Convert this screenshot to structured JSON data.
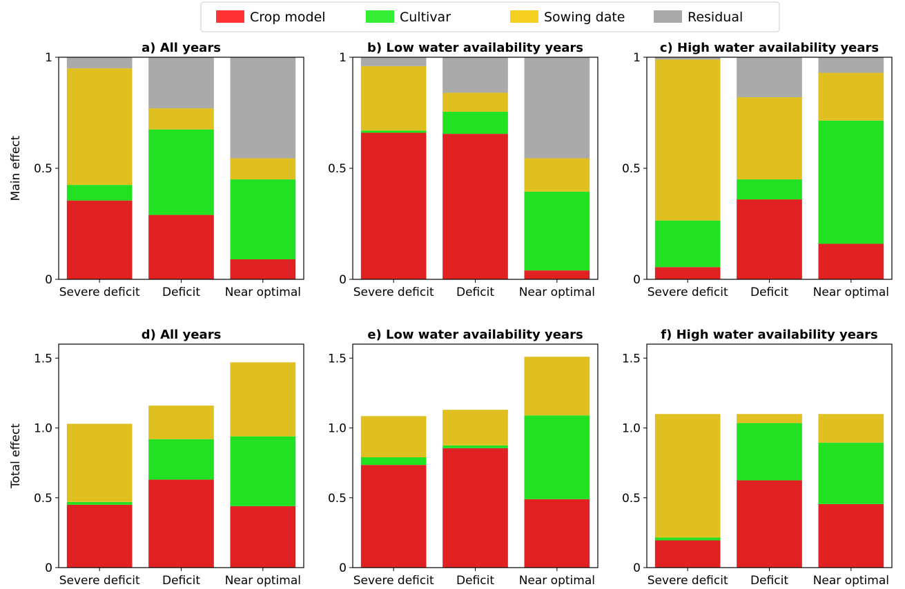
{
  "legend": {
    "placement": "top-center",
    "items": [
      {
        "label": "Crop model",
        "color": "#ff3333"
      },
      {
        "label": "Cultivar",
        "color": "#33ee33"
      },
      {
        "label": "Sowing date",
        "color": "#f5d020"
      },
      {
        "label": "Residual",
        "color": "#aaaaaa"
      }
    ]
  },
  "colors": {
    "crop_model": "#e02222",
    "cultivar": "#22e022",
    "sowing_date": "#dfc020",
    "residual": "#aaaaaa"
  },
  "chart_data": [
    {
      "type": "bar",
      "stacked": true,
      "title": "a) All years",
      "ylabel": "Main effect",
      "categories": [
        "Severe deficit",
        "Deficit",
        "Near optimal"
      ],
      "ylim": [
        0,
        1
      ],
      "yticks": [
        0,
        0.5,
        1
      ],
      "ytick_labels": [
        "0",
        "0.5",
        "1"
      ],
      "series": [
        {
          "name": "Crop model",
          "values": [
            0.355,
            0.29,
            0.09
          ]
        },
        {
          "name": "Cultivar",
          "values": [
            0.07,
            0.385,
            0.36
          ]
        },
        {
          "name": "Sowing date",
          "values": [
            0.525,
            0.095,
            0.095
          ]
        },
        {
          "name": "Residual",
          "values": [
            0.05,
            0.23,
            0.455
          ]
        }
      ]
    },
    {
      "type": "bar",
      "stacked": true,
      "title": "b) Low water availability years",
      "ylabel": "",
      "categories": [
        "Severe deficit",
        "Deficit",
        "Near optimal"
      ],
      "ylim": [
        0,
        1
      ],
      "yticks": [
        0,
        0.5,
        1
      ],
      "ytick_labels": [
        "0",
        "0.5",
        "1"
      ],
      "series": [
        {
          "name": "Crop model",
          "values": [
            0.66,
            0.655,
            0.04
          ]
        },
        {
          "name": "Cultivar",
          "values": [
            0.01,
            0.1,
            0.355
          ]
        },
        {
          "name": "Sowing date",
          "values": [
            0.29,
            0.085,
            0.15
          ]
        },
        {
          "name": "Residual",
          "values": [
            0.04,
            0.16,
            0.455
          ]
        }
      ]
    },
    {
      "type": "bar",
      "stacked": true,
      "title": "c) High water availability years",
      "ylabel": "",
      "categories": [
        "Severe deficit",
        "Deficit",
        "Near optimal"
      ],
      "ylim": [
        0,
        1
      ],
      "yticks": [
        0,
        0.5,
        1
      ],
      "ytick_labels": [
        "0",
        "0.5",
        "1"
      ],
      "series": [
        {
          "name": "Crop model",
          "values": [
            0.055,
            0.36,
            0.16
          ]
        },
        {
          "name": "Cultivar",
          "values": [
            0.21,
            0.09,
            0.555
          ]
        },
        {
          "name": "Sowing date",
          "values": [
            0.725,
            0.37,
            0.215
          ]
        },
        {
          "name": "Residual",
          "values": [
            0.01,
            0.18,
            0.07
          ]
        }
      ]
    },
    {
      "type": "bar",
      "stacked": true,
      "title": "d) All years",
      "ylabel": "Total effect",
      "categories": [
        "Severe deficit",
        "Deficit",
        "Near optimal"
      ],
      "ylim": [
        0,
        1.6
      ],
      "yticks": [
        0,
        0.5,
        1.0,
        1.5
      ],
      "ytick_labels": [
        "0",
        "0.5",
        "1.0",
        "1.5"
      ],
      "series": [
        {
          "name": "Crop model",
          "values": [
            0.45,
            0.63,
            0.44
          ]
        },
        {
          "name": "Cultivar",
          "values": [
            0.02,
            0.29,
            0.5
          ]
        },
        {
          "name": "Sowing date",
          "values": [
            0.56,
            0.24,
            0.53
          ]
        }
      ]
    },
    {
      "type": "bar",
      "stacked": true,
      "title": "e) Low water availability years",
      "ylabel": "",
      "categories": [
        "Severe deficit",
        "Deficit",
        "Near optimal"
      ],
      "ylim": [
        0,
        1.6
      ],
      "yticks": [
        0,
        0.5,
        1.0,
        1.5
      ],
      "ytick_labels": [
        "0",
        "0.5",
        "1.0",
        "1.5"
      ],
      "series": [
        {
          "name": "Crop model",
          "values": [
            0.735,
            0.855,
            0.49
          ]
        },
        {
          "name": "Cultivar",
          "values": [
            0.055,
            0.02,
            0.6
          ]
        },
        {
          "name": "Sowing date",
          "values": [
            0.295,
            0.255,
            0.42
          ]
        }
      ]
    },
    {
      "type": "bar",
      "stacked": true,
      "title": "f) High water availability years",
      "ylabel": "",
      "categories": [
        "Severe deficit",
        "Deficit",
        "Near optimal"
      ],
      "ylim": [
        0,
        1.6
      ],
      "yticks": [
        0,
        0.5,
        1.0,
        1.5
      ],
      "ytick_labels": [
        "0",
        "0.5",
        "1.0",
        "1.5"
      ],
      "series": [
        {
          "name": "Crop model",
          "values": [
            0.195,
            0.625,
            0.455
          ]
        },
        {
          "name": "Cultivar",
          "values": [
            0.02,
            0.41,
            0.44
          ]
        },
        {
          "name": "Sowing date",
          "values": [
            0.885,
            0.065,
            0.205
          ]
        }
      ]
    }
  ]
}
